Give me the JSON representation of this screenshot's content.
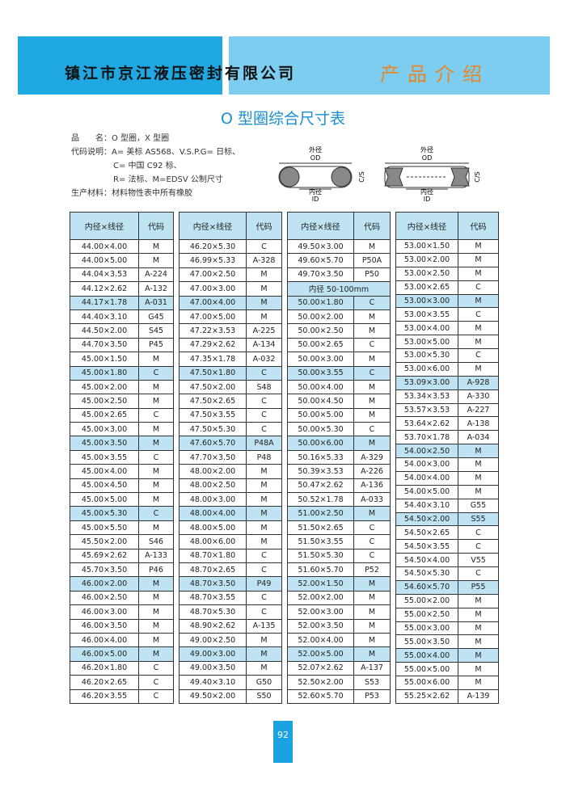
{
  "header": {
    "company": "镇江市京江液压密封有限公司",
    "section": "产品介绍"
  },
  "title": "O 型圈综合尺寸表",
  "info": [
    "品　　名：O 型圈，X 型圈",
    "代码说明：A= 美标 AS568、V.S.P.G= 日标、",
    "C= 中国 C92 标、",
    "R= 法标、M=EDSV 公制尺寸",
    "生产材料：材料物性表中所有橡胶"
  ],
  "diagrams": [
    {
      "od_label": "外径",
      "od": "OD",
      "id_label": "内径",
      "id": "ID",
      "cs": "C/S"
    },
    {
      "od_label": "外径",
      "od": "OD",
      "id_label": "内径",
      "id": "ID",
      "cs": "C/S"
    }
  ],
  "tables": [
    {
      "header": [
        "内径×线径",
        "代码"
      ],
      "rows": [
        [
          "44.00×4.00",
          "M"
        ],
        [
          "44.00×5.00",
          "M"
        ],
        [
          "44.04×3.53",
          "A-224"
        ],
        [
          "44.12×2.62",
          "A-132"
        ],
        [
          "44.17×1.78",
          "A-031"
        ],
        [
          "44.40×3.10",
          "G45"
        ],
        [
          "44.50×2.00",
          "S45"
        ],
        [
          "44.70×3.50",
          "P45"
        ],
        [
          "45.00×1.50",
          "M"
        ],
        [
          "45.00×1.80",
          "C"
        ],
        [
          "45.00×2.00",
          "M"
        ],
        [
          "45.00×2.50",
          "M"
        ],
        [
          "45.00×2.65",
          "C"
        ],
        [
          "45.00×3.00",
          "M"
        ],
        [
          "45.00×3.50",
          "M"
        ],
        [
          "45.00×3.55",
          "C"
        ],
        [
          "45.00×4.00",
          "M"
        ],
        [
          "45.00×4.50",
          "M"
        ],
        [
          "45.00×5.00",
          "M"
        ],
        [
          "45.00×5.30",
          "C"
        ],
        [
          "45.00×5.50",
          "M"
        ],
        [
          "45.50×2.00",
          "S46"
        ],
        [
          "45.69×2.62",
          "A-133"
        ],
        [
          "45.70×3.50",
          "P46"
        ],
        [
          "46.00×2.00",
          "M"
        ],
        [
          "46.00×2.50",
          "M"
        ],
        [
          "46.00×3.00",
          "M"
        ],
        [
          "46.00×3.50",
          "M"
        ],
        [
          "46.00×4.00",
          "M"
        ],
        [
          "46.00×5.00",
          "M"
        ],
        [
          "46.20×1.80",
          "C"
        ],
        [
          "46.20×2.65",
          "C"
        ],
        [
          "46.20×3.55",
          "C"
        ]
      ]
    },
    {
      "header": [
        "内径×线径",
        "代码"
      ],
      "rows": [
        [
          "46.20×5.30",
          "C"
        ],
        [
          "46.99×5.33",
          "A-328"
        ],
        [
          "47.00×2.50",
          "M"
        ],
        [
          "47.00×3.00",
          "M"
        ],
        [
          "47.00×4.00",
          "M"
        ],
        [
          "47.00×5.00",
          "M"
        ],
        [
          "47.22×3.53",
          "A-225"
        ],
        [
          "47.29×2.62",
          "A-134"
        ],
        [
          "47.35×1.78",
          "A-032"
        ],
        [
          "47.50×1.80",
          "C"
        ],
        [
          "47.50×2.00",
          "S48"
        ],
        [
          "47.50×2.65",
          "C"
        ],
        [
          "47.50×3.55",
          "C"
        ],
        [
          "47.50×5.30",
          "C"
        ],
        [
          "47.60×5.70",
          "P48A"
        ],
        [
          "47.70×3.50",
          "P48"
        ],
        [
          "48.00×2.00",
          "M"
        ],
        [
          "48.00×2.50",
          "M"
        ],
        [
          "48.00×3.00",
          "M"
        ],
        [
          "48.00×4.00",
          "M"
        ],
        [
          "48.00×5.00",
          "M"
        ],
        [
          "48.00×6.00",
          "M"
        ],
        [
          "48.70×1.80",
          "C"
        ],
        [
          "48.70×2.65",
          "C"
        ],
        [
          "48.70×3.50",
          "P49"
        ],
        [
          "48.70×3.55",
          "C"
        ],
        [
          "48.70×5.30",
          "C"
        ],
        [
          "48.90×2.62",
          "A-135"
        ],
        [
          "49.00×2.50",
          "M"
        ],
        [
          "49.00×3.00",
          "M"
        ],
        [
          "49.00×3.50",
          "M"
        ],
        [
          "49.40×3.10",
          "G50"
        ],
        [
          "49.50×2.00",
          "S50"
        ]
      ]
    },
    {
      "header": [
        "内径×线径",
        "代码"
      ],
      "rows": [
        [
          "49.50×3.00",
          "M"
        ],
        [
          "49.60×5.70",
          "P50A"
        ],
        [
          "49.70×3.50",
          "P50"
        ],
        [
          "内径 50-100mm"
        ],
        [
          "50.00×1.80",
          "C"
        ],
        [
          "50.00×2.00",
          "M"
        ],
        [
          "50.00×2.50",
          "M"
        ],
        [
          "50.00×2.65",
          "C"
        ],
        [
          "50.00×3.00",
          "M"
        ],
        [
          "50.00×3.55",
          "C"
        ],
        [
          "50.00×4.00",
          "M"
        ],
        [
          "50.00×4.50",
          "M"
        ],
        [
          "50.00×5.00",
          "M"
        ],
        [
          "50.00×5.30",
          "C"
        ],
        [
          "50.00×6.00",
          "M"
        ],
        [
          "50.16×5.33",
          "A-329"
        ],
        [
          "50.39×3.53",
          "A-226"
        ],
        [
          "50.47×2.62",
          "A-136"
        ],
        [
          "50.52×1.78",
          "A-033"
        ],
        [
          "51.00×2.50",
          "M"
        ],
        [
          "51.50×2.65",
          "C"
        ],
        [
          "51.50×3.55",
          "C"
        ],
        [
          "51.50×5.30",
          "C"
        ],
        [
          "51.60×5.70",
          "P52"
        ],
        [
          "52.00×1.50",
          "M"
        ],
        [
          "52.00×2.00",
          "M"
        ],
        [
          "52.00×3.00",
          "M"
        ],
        [
          "52.00×3.50",
          "M"
        ],
        [
          "52.00×4.00",
          "M"
        ],
        [
          "52.00×5.00",
          "M"
        ],
        [
          "52.07×2.62",
          "A-137"
        ],
        [
          "52.50×2.00",
          "S53"
        ],
        [
          "52.60×5.70",
          "P53"
        ]
      ]
    },
    {
      "header": [
        "内径×线径",
        "代码"
      ],
      "rows": [
        [
          "53.00×1.50",
          "M"
        ],
        [
          "53.00×2.00",
          "M"
        ],
        [
          "53.00×2.50",
          "M"
        ],
        [
          "53.00×2.65",
          "C"
        ],
        [
          "53.00×3.00",
          "M"
        ],
        [
          "53.00×3.55",
          "C"
        ],
        [
          "53.00×4.00",
          "M"
        ],
        [
          "53.00×5.00",
          "M"
        ],
        [
          "53.00×5.30",
          "C"
        ],
        [
          "53.00×6.00",
          "M"
        ],
        [
          "53.09×3.00",
          "A-928"
        ],
        [
          "53.34×3.53",
          "A-330"
        ],
        [
          "53.57×3.53",
          "A-227"
        ],
        [
          "53.64×2.62",
          "A-138"
        ],
        [
          "53.70×1.78",
          "A-034"
        ],
        [
          "54.00×2.50",
          "M"
        ],
        [
          "54.00×3.00",
          "M"
        ],
        [
          "54.00×4.00",
          "M"
        ],
        [
          "54.00×5.00",
          "M"
        ],
        [
          "54.40×3.10",
          "G55"
        ],
        [
          "54.50×2.00",
          "S55"
        ],
        [
          "54.50×2.65",
          "C"
        ],
        [
          "54.50×3.55",
          "C"
        ],
        [
          "54.50×4.00",
          "V55"
        ],
        [
          "54.50×5.30",
          "C"
        ],
        [
          "54.60×5.70",
          "P55"
        ],
        [
          "55.00×2.00",
          "M"
        ],
        [
          "55.00×2.50",
          "M"
        ],
        [
          "55.00×3.00",
          "M"
        ],
        [
          "55.00×3.50",
          "M"
        ],
        [
          "55.00×4.00",
          "M"
        ],
        [
          "55.00×5.00",
          "M"
        ],
        [
          "55.00×6.00",
          "M"
        ],
        [
          "55.25×2.62",
          "A-139"
        ]
      ]
    }
  ],
  "page_number": "92"
}
